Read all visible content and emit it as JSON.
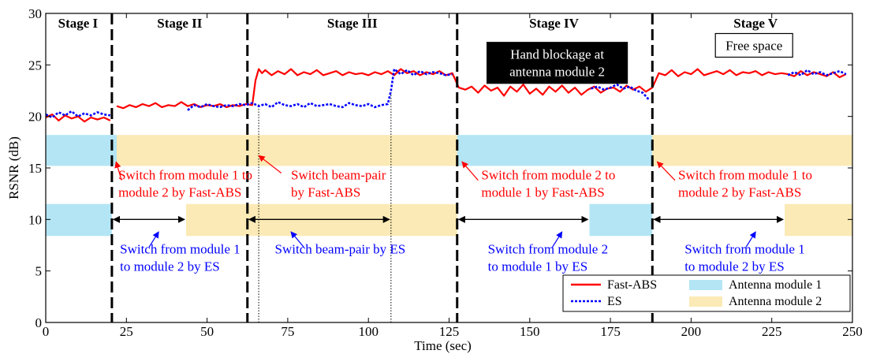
{
  "chart_data": {
    "type": "line",
    "xlabel": "Time (sec)",
    "ylabel": "RSNR (dB)",
    "xlim": [
      0,
      250
    ],
    "ylim": [
      0,
      30
    ],
    "x_ticks": [
      0,
      25,
      50,
      75,
      100,
      125,
      150,
      175,
      200,
      225,
      250
    ],
    "y_ticks": [
      0,
      5,
      10,
      15,
      20,
      25,
      30
    ],
    "grid": false,
    "legend_placement": "bottom-right",
    "colors": {
      "fast_abs": "#ff0000",
      "es": "#0000ff",
      "module1": "#b3e5f5",
      "module2": "#fbeab5"
    },
    "stage_boundaries": [
      20.5,
      62.5,
      127.5,
      188
    ],
    "stages": [
      {
        "label": "Stage I",
        "x": 10
      },
      {
        "label": "Stage II",
        "x": 41.5
      },
      {
        "label": "Stage III",
        "x": 95
      },
      {
        "label": "Stage IV",
        "x": 157.5
      },
      {
        "label": "Stage V",
        "x": 220
      }
    ],
    "series": [
      {
        "name": "Fast-ABS",
        "color": "#ff0000",
        "style": "solid",
        "segments": [
          {
            "x": [
              0,
              2,
              4,
              6,
              8,
              10,
              12,
              14,
              16,
              18,
              20
            ],
            "y": [
              19.9,
              20.2,
              19.6,
              20.1,
              19.8,
              20.0,
              19.5,
              19.9,
              19.7,
              19.9,
              19.6
            ]
          },
          {
            "x": [
              22,
              24,
              26,
              28,
              30,
              32,
              34,
              36,
              38,
              40,
              42,
              44,
              46,
              48,
              50,
              52,
              54,
              56,
              58,
              60,
              62,
              64,
              65,
              66,
              67,
              68,
              70,
              72,
              74,
              76,
              78,
              80,
              82,
              84,
              86,
              88,
              90,
              92,
              94,
              96,
              98,
              100,
              102,
              104,
              106,
              108,
              110,
              112,
              114,
              116,
              118,
              120,
              122,
              124,
              126,
              128,
              130,
              132,
              134,
              136,
              138,
              140,
              142,
              144,
              146,
              148,
              150,
              152,
              154,
              156,
              158,
              160,
              162,
              164,
              166,
              168,
              170,
              172,
              174,
              176,
              178,
              180,
              182,
              184,
              186,
              188,
              190,
              192,
              194,
              196,
              198,
              200,
              202,
              204,
              206,
              208,
              210,
              212,
              214,
              216,
              218,
              220,
              222,
              224,
              226,
              228,
              230,
              232,
              234,
              236,
              238,
              240,
              242,
              244,
              246,
              248
            ],
            "y": [
              21.0,
              20.8,
              21.1,
              20.9,
              21.2,
              21.0,
              21.3,
              20.9,
              21.1,
              21.0,
              21.4,
              21.0,
              21.2,
              20.9,
              21.1,
              21.0,
              21.2,
              20.9,
              21.1,
              21.0,
              21.2,
              21.1,
              23.5,
              24.6,
              24.2,
              24.5,
              24.0,
              24.4,
              24.1,
              24.6,
              24.0,
              24.3,
              24.1,
              24.5,
              24.0,
              24.2,
              24.4,
              24.0,
              24.3,
              24.1,
              24.2,
              24.0,
              24.3,
              24.1,
              24.4,
              24.0,
              24.6,
              24.2,
              24.4,
              24.0,
              24.3,
              24.1,
              24.4,
              24.0,
              24.2,
              22.8,
              22.6,
              22.9,
              22.3,
              23.0,
              22.5,
              22.8,
              22.0,
              22.9,
              22.4,
              23.1,
              22.2,
              22.7,
              22.1,
              22.9,
              22.4,
              23.0,
              22.3,
              22.8,
              22.1,
              22.6,
              22.9,
              22.3,
              22.7,
              22.8,
              22.4,
              23.0,
              22.6,
              22.9,
              22.4,
              22.8,
              24.2,
              24.0,
              24.5,
              23.9,
              24.3,
              24.1,
              24.6,
              24.0,
              24.2,
              24.4,
              24.1,
              24.5,
              24.0,
              24.3,
              24.2,
              24.4,
              24.0,
              24.3,
              24.1,
              24.2,
              24.1,
              23.9,
              24.4,
              24.0,
              24.3,
              24.1,
              23.9,
              24.3,
              23.8,
              24.1
            ]
          }
        ]
      },
      {
        "name": "ES",
        "color": "#0000ff",
        "style": "dotted",
        "segments": [
          {
            "x": [
              0,
              2,
              4,
              6,
              8,
              10,
              12,
              14,
              16,
              18,
              20
            ],
            "y": [
              20.2,
              19.9,
              20.4,
              20.1,
              20.5,
              20.0,
              20.3,
              20.1,
              20.4,
              20.2,
              20.1
            ]
          },
          {
            "x": [
              44,
              46,
              48,
              50,
              52,
              54,
              56,
              58,
              60,
              62,
              64,
              66,
              68,
              70,
              72,
              74,
              76,
              78,
              80,
              82,
              84,
              86,
              88,
              90,
              92,
              94,
              96,
              98,
              100,
              102,
              104,
              106,
              107,
              108,
              110,
              112,
              114,
              116,
              118,
              120,
              122,
              124,
              126
            ],
            "y": [
              20.6,
              21.1,
              20.9,
              21.2,
              21.0,
              20.9,
              21.1,
              21.0,
              21.2,
              21.1,
              21.3,
              21.0,
              21.2,
              20.9,
              21.4,
              21.1,
              21.0,
              21.2,
              20.9,
              21.3,
              21.0,
              21.1,
              21.2,
              21.0,
              20.9,
              21.3,
              21.1,
              21.0,
              21.2,
              20.9,
              21.1,
              21.2,
              22.5,
              24.6,
              24.1,
              24.5,
              24.0,
              24.4,
              24.1,
              24.3,
              24.2,
              24.0,
              24.1
            ]
          },
          {
            "x": [
              169,
              171,
              173,
              175,
              177,
              179,
              181,
              183,
              185,
              187
            ],
            "y": [
              22.7,
              22.9,
              22.6,
              22.8,
              23.1,
              22.7,
              22.9,
              22.5,
              22.3,
              21.6
            ]
          },
          {
            "x": [
              230,
              232,
              234,
              236,
              238,
              240,
              242,
              244,
              246,
              248
            ],
            "y": [
              24.0,
              24.3,
              24.0,
              24.5,
              24.1,
              24.3,
              24.0,
              24.2,
              24.4,
              24.1
            ]
          }
        ]
      }
    ],
    "bands": [
      {
        "row": "upper",
        "module": "module1",
        "x0": 0,
        "x1": 22,
        "y0": 15.2,
        "y1": 18.2
      },
      {
        "row": "upper",
        "module": "module2",
        "x0": 22,
        "x1": 127.5,
        "y0": 15.2,
        "y1": 18.2
      },
      {
        "row": "upper",
        "module": "module1",
        "x0": 127.5,
        "x1": 188,
        "y0": 15.2,
        "y1": 18.2
      },
      {
        "row": "upper",
        "module": "module2",
        "x0": 188,
        "x1": 250,
        "y0": 15.2,
        "y1": 18.2
      },
      {
        "row": "lower",
        "module": "module1",
        "x0": 0,
        "x1": 20.5,
        "y0": 8.4,
        "y1": 11.5
      },
      {
        "row": "lower",
        "module": "module2",
        "x0": 43.5,
        "x1": 127.5,
        "y0": 8.4,
        "y1": 11.5
      },
      {
        "row": "lower",
        "module": "module1",
        "x0": 168.5,
        "x1": 188,
        "y0": 8.4,
        "y1": 11.5
      },
      {
        "row": "lower",
        "module": "module2",
        "x0": 229,
        "x1": 250,
        "y0": 8.4,
        "y1": 11.5
      }
    ],
    "dotted_markers": [
      {
        "x": 66,
        "y0": 0,
        "y1": 21.2
      },
      {
        "x": 107,
        "y0": 0,
        "y1": 22.4
      }
    ],
    "span_arrows": [
      {
        "x0": 20.5,
        "x1": 43.5,
        "y": 10
      },
      {
        "x0": 62.5,
        "x1": 107,
        "y": 10
      },
      {
        "x0": 127.5,
        "x1": 168.5,
        "y": 10
      },
      {
        "x0": 188,
        "x1": 229,
        "y": 10
      }
    ],
    "annotations_red": [
      {
        "lines": [
          "Switch from module 1 to",
          "module 2 by Fast-ABS"
        ],
        "x": 22.5,
        "y": 14.2,
        "arrow_from": [
          23.5,
          13.8
        ],
        "arrow_to": [
          21.8,
          15.6
        ]
      },
      {
        "lines": [
          "Switch beam-pair",
          "by Fast-ABS"
        ],
        "x": 76,
        "y": 14.2,
        "arrow_from": [
          73,
          14.5
        ],
        "arrow_to": [
          66,
          16.2
        ]
      },
      {
        "lines": [
          "Switch from module 2 to",
          "module 1 by Fast-ABS"
        ],
        "x": 135,
        "y": 14.2,
        "arrow_from": [
          134,
          13.8
        ],
        "arrow_to": [
          129,
          15.6
        ]
      },
      {
        "lines": [
          "Switch from module 1 to",
          "module 2 by Fast-ABS"
        ],
        "x": 196,
        "y": 14.2,
        "arrow_from": [
          195,
          13.8
        ],
        "arrow_to": [
          189.5,
          15.6
        ]
      }
    ],
    "annotations_blue": [
      {
        "lines": [
          "Switch from module 1",
          "to module 2 by ES"
        ],
        "x": 23,
        "y": 7.0,
        "arrow_from": [
          32,
          7.3
        ],
        "arrow_to": [
          35,
          8.8
        ]
      },
      {
        "lines": [
          "Switch beam-pair by ES"
        ],
        "x": 71,
        "y": 7.0,
        "arrow_from": [
          80,
          7.3
        ],
        "arrow_to": [
          76,
          8.8
        ]
      },
      {
        "lines": [
          "Switch from module 2",
          "to module 1 by ES"
        ],
        "x": 137,
        "y": 7.0,
        "arrow_from": [
          157,
          7.3
        ],
        "arrow_to": [
          160,
          8.8
        ]
      },
      {
        "lines": [
          "Switch from module 1",
          "to module 2 by ES"
        ],
        "x": 198,
        "y": 7.0,
        "arrow_from": [
          217,
          7.3
        ],
        "arrow_to": [
          220,
          8.8
        ]
      }
    ],
    "boxed_labels": [
      {
        "lines": [
          "Hand blockage at",
          "antenna module 2"
        ],
        "style": "dark",
        "cx": 158.5,
        "cy": 25.2
      },
      {
        "lines": [
          "Free space"
        ],
        "style": "light",
        "cx": 219.5,
        "cy": 26.9
      }
    ],
    "legend": [
      {
        "label": "Fast-ABS",
        "kind": "line",
        "color": "#ff0000",
        "style": "solid"
      },
      {
        "label": "ES",
        "kind": "line",
        "color": "#0000ff",
        "style": "dotted"
      },
      {
        "label": "Antenna module 1",
        "kind": "patch",
        "color": "#b3e5f5"
      },
      {
        "label": "Antenna module 2",
        "kind": "patch",
        "color": "#fbeab5"
      }
    ]
  }
}
